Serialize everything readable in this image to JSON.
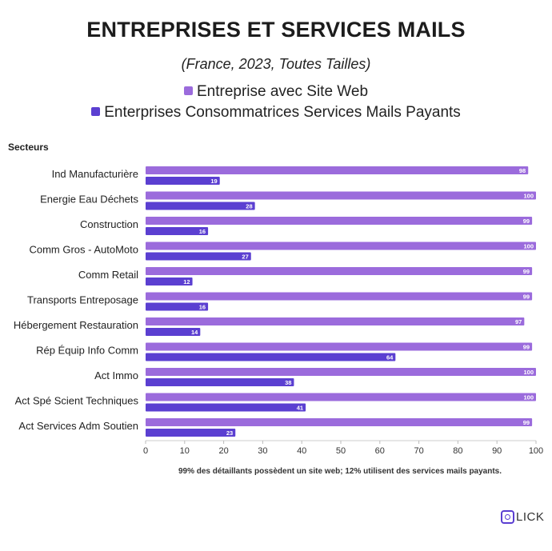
{
  "title": "ENTREPRISES ET SERVICES MAILS",
  "subtitle": "(France, 2023, Toutes Tailles)",
  "legend": [
    {
      "label": "Entreprise avec Site Web",
      "color": "#9b6bdc"
    },
    {
      "label": "Enterprises Consommatrices Services Mails Payants",
      "color": "#5b3fd1"
    }
  ],
  "footnote": "99% des détaillants possèdent un site web; 12% utilisent des services mails payants.",
  "logo_text": "LICK",
  "chart_data": {
    "type": "bar",
    "orientation": "horizontal",
    "ylabel": "Secteurs",
    "categories": [
      "Ind Manufacturière",
      "Energie Eau Déchets",
      "Construction",
      "Comm Gros - AutoMoto",
      "Comm Retail",
      "Transports Entreposage",
      "Hébergement Restauration",
      "Rép Équip Info Comm",
      "Act Immo",
      "Act Spé Scient Techniques",
      "Act Services Adm Soutien"
    ],
    "series": [
      {
        "name": "Entreprise avec Site Web",
        "color": "#9b6bdc",
        "values": [
          98,
          100,
          99,
          100,
          99,
          99,
          97,
          99,
          100,
          100,
          99
        ]
      },
      {
        "name": "Enterprises Consommatrices Services Mails Payants",
        "color": "#5b3fd1",
        "values": [
          19,
          28,
          16,
          27,
          12,
          16,
          14,
          64,
          38,
          41,
          23
        ]
      }
    ],
    "xlim": [
      0,
      100
    ],
    "xticks": [
      0,
      10,
      20,
      30,
      40,
      50,
      60,
      70,
      80,
      90,
      100
    ],
    "grid": false,
    "legend_position": "top"
  }
}
